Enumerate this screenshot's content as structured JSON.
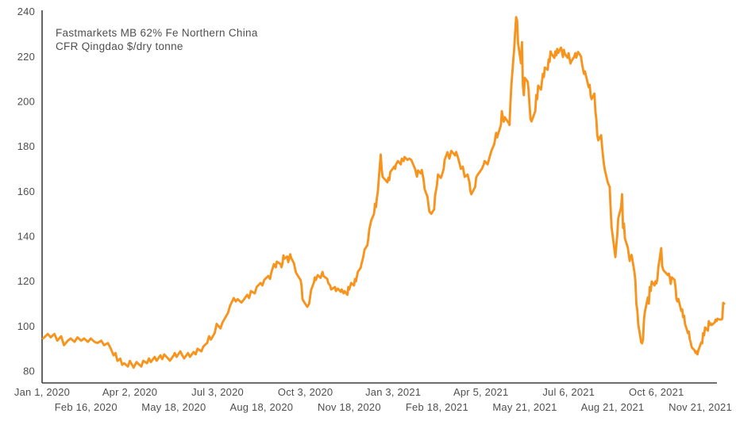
{
  "header": {
    "title_line1": "Fastmarkets MB 62% Fe Northern China",
    "title_line2": "CFR Qingdao $/dry tonne"
  },
  "colors": {
    "line": "#F7941E",
    "axis": "#3f3f3f",
    "text": "#4f4f4f",
    "background": "#ffffff"
  },
  "chart_data": {
    "type": "line",
    "title": "Fastmarkets MB 62% Fe Northern China CFR Qingdao $/dry tonne",
    "xlabel": "",
    "ylabel": "$/dry tonne",
    "ylim": [
      80,
      240
    ],
    "grid": false,
    "legend_position": "none",
    "y_ticks": [
      240,
      220,
      200,
      180,
      160,
      140,
      120,
      100,
      80
    ],
    "x_ticks": [
      {
        "date": "2020-01-01",
        "label": "Jan 1, 2020",
        "row": 1
      },
      {
        "date": "2020-02-16",
        "label": "Feb 16, 2020",
        "row": 2
      },
      {
        "date": "2020-04-02",
        "label": "Apr 2, 2020",
        "row": 1
      },
      {
        "date": "2020-05-18",
        "label": "May 18, 2020",
        "row": 2
      },
      {
        "date": "2020-07-03",
        "label": "Jul 3, 2020",
        "row": 1
      },
      {
        "date": "2020-08-18",
        "label": "Aug 18, 2020",
        "row": 2
      },
      {
        "date": "2020-10-03",
        "label": "Oct 3, 2020",
        "row": 1
      },
      {
        "date": "2020-11-18",
        "label": "Nov 18, 2020",
        "row": 2
      },
      {
        "date": "2021-01-03",
        "label": "Jan 3, 2021",
        "row": 1
      },
      {
        "date": "2021-02-18",
        "label": "Feb 18, 2021",
        "row": 2
      },
      {
        "date": "2021-04-05",
        "label": "Apr 5, 2021",
        "row": 1
      },
      {
        "date": "2021-05-21",
        "label": "May 21, 2021",
        "row": 2
      },
      {
        "date": "2021-07-06",
        "label": "Jul 6, 2021",
        "row": 1
      },
      {
        "date": "2021-08-21",
        "label": "Aug 21, 2021",
        "row": 2
      },
      {
        "date": "2021-10-06",
        "label": "Oct 6, 2021",
        "row": 1
      },
      {
        "date": "2021-11-21",
        "label": "Nov 21, 2021",
        "row": 2
      }
    ],
    "series": [
      {
        "name": "Fastmarkets MB 62% Fe Northern China CFR Qingdao",
        "unit": "$/dry tonne",
        "dates": [
          "2020-01-02",
          "2020-01-07",
          "2020-01-10",
          "2020-01-14",
          "2020-01-17",
          "2020-01-21",
          "2020-01-24",
          "2020-01-28",
          "2020-01-31",
          "2020-02-04",
          "2020-02-07",
          "2020-02-11",
          "2020-02-14",
          "2020-02-18",
          "2020-02-21",
          "2020-02-25",
          "2020-02-28",
          "2020-03-03",
          "2020-03-06",
          "2020-03-10",
          "2020-03-13",
          "2020-03-16",
          "2020-03-18",
          "2020-03-20",
          "2020-03-23",
          "2020-03-25",
          "2020-03-27",
          "2020-03-31",
          "2020-04-02",
          "2020-04-06",
          "2020-04-09",
          "2020-04-14",
          "2020-04-16",
          "2020-04-20",
          "2020-04-22",
          "2020-04-24",
          "2020-04-28",
          "2020-04-30",
          "2020-05-04",
          "2020-05-06",
          "2020-05-08",
          "2020-05-12",
          "2020-05-14",
          "2020-05-18",
          "2020-05-19",
          "2020-05-21",
          "2020-05-25",
          "2020-05-27",
          "2020-05-29",
          "2020-06-02",
          "2020-06-04",
          "2020-06-08",
          "2020-06-10",
          "2020-06-12",
          "2020-06-16",
          "2020-06-18",
          "2020-06-22",
          "2020-06-24",
          "2020-06-26",
          "2020-06-30",
          "2020-07-02",
          "2020-07-06",
          "2020-07-08",
          "2020-07-10",
          "2020-07-14",
          "2020-07-16",
          "2020-07-20",
          "2020-07-22",
          "2020-07-24",
          "2020-07-28",
          "2020-07-30",
          "2020-08-03",
          "2020-08-05",
          "2020-08-07",
          "2020-08-11",
          "2020-08-13",
          "2020-08-17",
          "2020-08-19",
          "2020-08-21",
          "2020-08-25",
          "2020-08-27",
          "2020-08-28",
          "2020-08-31",
          "2020-09-02",
          "2020-09-03",
          "2020-09-07",
          "2020-09-08",
          "2020-09-09",
          "2020-09-10",
          "2020-09-11",
          "2020-09-14",
          "2020-09-15",
          "2020-09-16",
          "2020-09-17",
          "2020-09-18",
          "2020-09-21",
          "2020-09-22",
          "2020-09-23",
          "2020-09-25",
          "2020-09-28",
          "2020-09-29",
          "2020-09-30",
          "2020-10-02",
          "2020-10-05",
          "2020-10-07",
          "2020-10-08",
          "2020-10-09",
          "2020-10-12",
          "2020-10-13",
          "2020-10-14",
          "2020-10-16",
          "2020-10-19",
          "2020-10-21",
          "2020-10-22",
          "2020-10-26",
          "2020-10-27",
          "2020-10-29",
          "2020-10-30",
          "2020-11-03",
          "2020-11-04",
          "2020-11-06",
          "2020-11-09",
          "2020-11-10",
          "2020-11-12",
          "2020-11-13",
          "2020-11-16",
          "2020-11-17",
          "2020-11-18",
          "2020-11-20",
          "2020-11-23",
          "2020-11-24",
          "2020-11-25",
          "2020-11-27",
          "2020-11-30",
          "2020-12-01",
          "2020-12-02",
          "2020-12-03",
          "2020-12-04",
          "2020-12-07",
          "2020-12-08",
          "2020-12-09",
          "2020-12-10",
          "2020-12-11",
          "2020-12-14",
          "2020-12-15",
          "2020-12-16",
          "2020-12-17",
          "2020-12-18",
          "2020-12-21",
          "2020-12-22",
          "2020-12-23",
          "2020-12-28",
          "2020-12-29",
          "2020-12-30",
          "2020-12-31",
          "2021-01-04",
          "2021-01-05",
          "2021-01-06",
          "2021-01-08",
          "2021-01-11",
          "2021-01-12",
          "2021-01-14",
          "2021-01-15",
          "2021-01-18",
          "2021-01-20",
          "2021-01-22",
          "2021-01-25",
          "2021-01-26",
          "2021-01-28",
          "2021-01-29",
          "2021-02-01",
          "2021-02-02",
          "2021-02-04",
          "2021-02-05",
          "2021-02-08",
          "2021-02-09",
          "2021-02-10",
          "2021-02-12",
          "2021-02-15",
          "2021-02-16",
          "2021-02-18",
          "2021-02-19",
          "2021-02-22",
          "2021-02-23",
          "2021-02-25",
          "2021-02-26",
          "2021-03-01",
          "2021-03-03",
          "2021-03-05",
          "2021-03-09",
          "2021-03-10",
          "2021-03-12",
          "2021-03-15",
          "2021-03-17",
          "2021-03-19",
          "2021-03-22",
          "2021-03-24",
          "2021-03-25",
          "2021-03-26",
          "2021-03-30",
          "2021-03-31",
          "2021-04-01",
          "2021-04-06",
          "2021-04-08",
          "2021-04-09",
          "2021-04-12",
          "2021-04-14",
          "2021-04-16",
          "2021-04-19",
          "2021-04-20",
          "2021-04-21",
          "2021-04-22",
          "2021-04-26",
          "2021-04-27",
          "2021-04-28",
          "2021-04-29",
          "2021-04-30",
          "2021-05-04",
          "2021-05-05",
          "2021-05-06",
          "2021-05-07",
          "2021-05-10",
          "2021-05-11",
          "2021-05-12",
          "2021-05-13",
          "2021-05-14",
          "2021-05-17",
          "2021-05-18",
          "2021-05-19",
          "2021-05-20",
          "2021-05-21",
          "2021-05-24",
          "2021-05-25",
          "2021-05-26",
          "2021-05-27",
          "2021-05-28",
          "2021-06-01",
          "2021-06-02",
          "2021-06-03",
          "2021-06-04",
          "2021-06-07",
          "2021-06-08",
          "2021-06-09",
          "2021-06-10",
          "2021-06-11",
          "2021-06-14",
          "2021-06-15",
          "2021-06-16",
          "2021-06-17",
          "2021-06-18",
          "2021-06-21",
          "2021-06-22",
          "2021-06-23",
          "2021-06-24",
          "2021-06-25",
          "2021-06-28",
          "2021-06-29",
          "2021-06-30",
          "2021-07-01",
          "2021-07-02",
          "2021-07-05",
          "2021-07-06",
          "2021-07-07",
          "2021-07-08",
          "2021-07-09",
          "2021-07-12",
          "2021-07-13",
          "2021-07-14",
          "2021-07-15",
          "2021-07-16",
          "2021-07-19",
          "2021-07-20",
          "2021-07-21",
          "2021-07-22",
          "2021-07-23",
          "2021-07-26",
          "2021-07-27",
          "2021-07-28",
          "2021-07-29",
          "2021-07-30",
          "2021-08-02",
          "2021-08-03",
          "2021-08-04",
          "2021-08-05",
          "2021-08-06",
          "2021-08-09",
          "2021-08-10",
          "2021-08-11",
          "2021-08-12",
          "2021-08-13",
          "2021-08-16",
          "2021-08-17",
          "2021-08-18",
          "2021-08-19",
          "2021-08-20",
          "2021-08-23",
          "2021-08-24",
          "2021-08-25",
          "2021-08-26",
          "2021-08-27",
          "2021-08-30",
          "2021-08-31",
          "2021-09-01",
          "2021-09-02",
          "2021-09-03",
          "2021-09-06",
          "2021-09-07",
          "2021-09-08",
          "2021-09-09",
          "2021-09-10",
          "2021-09-13",
          "2021-09-14",
          "2021-09-15",
          "2021-09-16",
          "2021-09-17",
          "2021-09-20",
          "2021-09-21",
          "2021-09-22",
          "2021-09-23",
          "2021-09-24",
          "2021-09-27",
          "2021-09-28",
          "2021-09-29",
          "2021-09-30",
          "2021-10-01",
          "2021-10-04",
          "2021-10-05",
          "2021-10-06",
          "2021-10-07",
          "2021-10-08",
          "2021-10-11",
          "2021-10-12",
          "2021-10-13",
          "2021-10-14",
          "2021-10-15",
          "2021-10-18",
          "2021-10-19",
          "2021-10-20",
          "2021-10-21",
          "2021-10-22",
          "2021-10-25",
          "2021-10-26",
          "2021-10-27",
          "2021-10-28",
          "2021-10-29",
          "2021-11-01",
          "2021-11-02",
          "2021-11-03",
          "2021-11-04",
          "2021-11-05",
          "2021-11-08",
          "2021-11-09",
          "2021-11-10",
          "2021-11-11",
          "2021-11-12",
          "2021-11-15",
          "2021-11-16",
          "2021-11-17",
          "2021-11-18",
          "2021-11-19",
          "2021-11-22",
          "2021-11-23",
          "2021-11-24",
          "2021-11-25",
          "2021-11-26",
          "2021-11-29",
          "2021-11-30",
          "2021-12-01",
          "2021-12-02",
          "2021-12-03",
          "2021-12-06",
          "2021-12-07",
          "2021-12-08",
          "2021-12-09",
          "2021-12-10",
          "2021-12-13",
          "2021-12-14",
          "2021-12-15",
          "2021-12-16"
        ],
        "values": [
          94.5,
          96.5,
          95.0,
          96.5,
          93.5,
          95.5,
          91.5,
          93.5,
          94.5,
          93.0,
          95.0,
          93.5,
          94.5,
          93.0,
          94.5,
          93.0,
          92.5,
          93.5,
          91.5,
          92.5,
          90.0,
          87.0,
          88.0,
          84.5,
          85.5,
          82.8,
          83.5,
          82.0,
          84.5,
          81.5,
          84.0,
          82.0,
          84.6,
          83.5,
          85.6,
          84.0,
          86.3,
          84.6,
          87.0,
          85.3,
          87.4,
          85.6,
          84.6,
          87.0,
          88.0,
          86.3,
          88.8,
          87.0,
          85.6,
          88.0,
          86.3,
          88.5,
          87.4,
          89.9,
          88.8,
          90.9,
          92.5,
          95.5,
          94.0,
          97.0,
          101.0,
          99.0,
          101.5,
          103.0,
          106.0,
          109.0,
          112.5,
          111.0,
          112.0,
          110.5,
          111.5,
          113.9,
          112.5,
          115.6,
          114.6,
          117.4,
          119.2,
          118.1,
          120.6,
          122.3,
          121.0,
          123.4,
          127.6,
          126.2,
          128.7,
          127.6,
          126.2,
          128.0,
          131.5,
          130.0,
          131.0,
          128.5,
          130.0,
          132.0,
          130.5,
          128.0,
          126.0,
          124.0,
          122.5,
          120.5,
          118.0,
          112.0,
          110.5,
          108.6,
          110.0,
          113.0,
          116.0,
          119.5,
          121.7,
          120.5,
          122.7,
          121.5,
          124.1,
          122.3,
          121.0,
          119.2,
          118.0,
          116.3,
          117.4,
          115.6,
          116.7,
          115.3,
          116.3,
          114.6,
          115.6,
          113.9,
          117.4,
          116.3,
          119.2,
          118.1,
          121.0,
          119.9,
          124.1,
          126.0,
          128.0,
          129.5,
          131.5,
          134.0,
          136.0,
          139.0,
          143.0,
          145.0,
          147.0,
          150.0,
          154.5,
          153.0,
          157.0,
          160.0,
          176.4,
          170.0,
          166.5,
          164.0,
          166.0,
          165.0,
          168.5,
          171.0,
          170.0,
          172.0,
          173.5,
          172.0,
          174.5,
          173.5,
          175.3,
          174.0,
          174.6,
          174.0,
          171.0,
          170.0,
          166.5,
          169.3,
          168.0,
          169.5,
          165.0,
          161.0,
          157.6,
          154.0,
          151.0,
          150.0,
          152.0,
          158.0,
          163.0,
          167.5,
          166.0,
          167.0,
          170.0,
          174.0,
          177.4,
          174.6,
          178.0,
          176.0,
          177.5,
          175.0,
          170.0,
          171.0,
          166.4,
          167.5,
          164.0,
          160.0,
          158.7,
          162.0,
          166.0,
          167.0,
          170.0,
          172.0,
          173.5,
          172.0,
          175.0,
          178.0,
          181.0,
          183.5,
          186.0,
          184.0,
          189.5,
          195.7,
          193.0,
          191.0,
          193.0,
          190.5,
          189.5,
          199.3,
          207.4,
          223.9,
          231.0,
          237.5,
          236.0,
          226.0,
          217.0,
          226.4,
          207.0,
          202.8,
          210.5,
          208.8,
          205.0,
          198.0,
          192.2,
          191.1,
          195.7,
          202.8,
          201.0,
          207.0,
          205.3,
          208.8,
          212.3,
          210.9,
          215.1,
          214.1,
          218.7,
          217.6,
          222.3,
          221.2,
          219.4,
          222.3,
          220.5,
          223.4,
          221.6,
          224.0,
          222.3,
          219.8,
          223.0,
          221.2,
          219.4,
          221.5,
          219.0,
          216.9,
          218.0,
          220.0,
          221.5,
          219.5,
          221.0,
          222.0,
          220.0,
          216.9,
          214.4,
          212.3,
          213.4,
          208.1,
          206.3,
          207.4,
          202.8,
          201.0,
          203.5,
          195.7,
          192.0,
          185.0,
          182.7,
          185.0,
          180.0,
          175.6,
          172.0,
          169.3,
          164.0,
          162.9,
          162.0,
          152.3,
          144.0,
          134.0,
          130.7,
          136.0,
          141.0,
          148.0,
          153.0,
          158.7,
          143.7,
          145.6,
          139.0,
          135.0,
          132.0,
          129.0,
          131.0,
          131.7,
          124.0,
          120.0,
          110.0,
          107.0,
          100.8,
          92.9,
          92.3,
          94.0,
          102.9,
          106.5,
          112.8,
          110.0,
          117.4,
          115.6,
          119.9,
          118.1,
          120.0,
          119.0,
          121.0,
          126.2,
          134.7,
          126.9,
          125.2,
          124.5,
          124.1,
          122.7,
          123.4,
          121.7,
          118.8,
          121.7,
          120.6,
          117.4,
          112.1,
          111.0,
          112.1,
          106.8,
          107.5,
          104.0,
          104.7,
          101.0,
          96.9,
          97.6,
          94.1,
          92.7,
          90.6,
          89.2,
          88.1,
          88.8,
          87.4,
          89.2,
          92.7,
          92.3,
          96.9,
          95.9,
          99.4,
          98.0,
          102.2,
          100.5,
          101.2,
          100.5,
          101.6,
          102.9,
          102.2,
          103.3,
          103.0,
          102.9,
          103.3,
          110.4,
          110.0
        ]
      }
    ]
  }
}
